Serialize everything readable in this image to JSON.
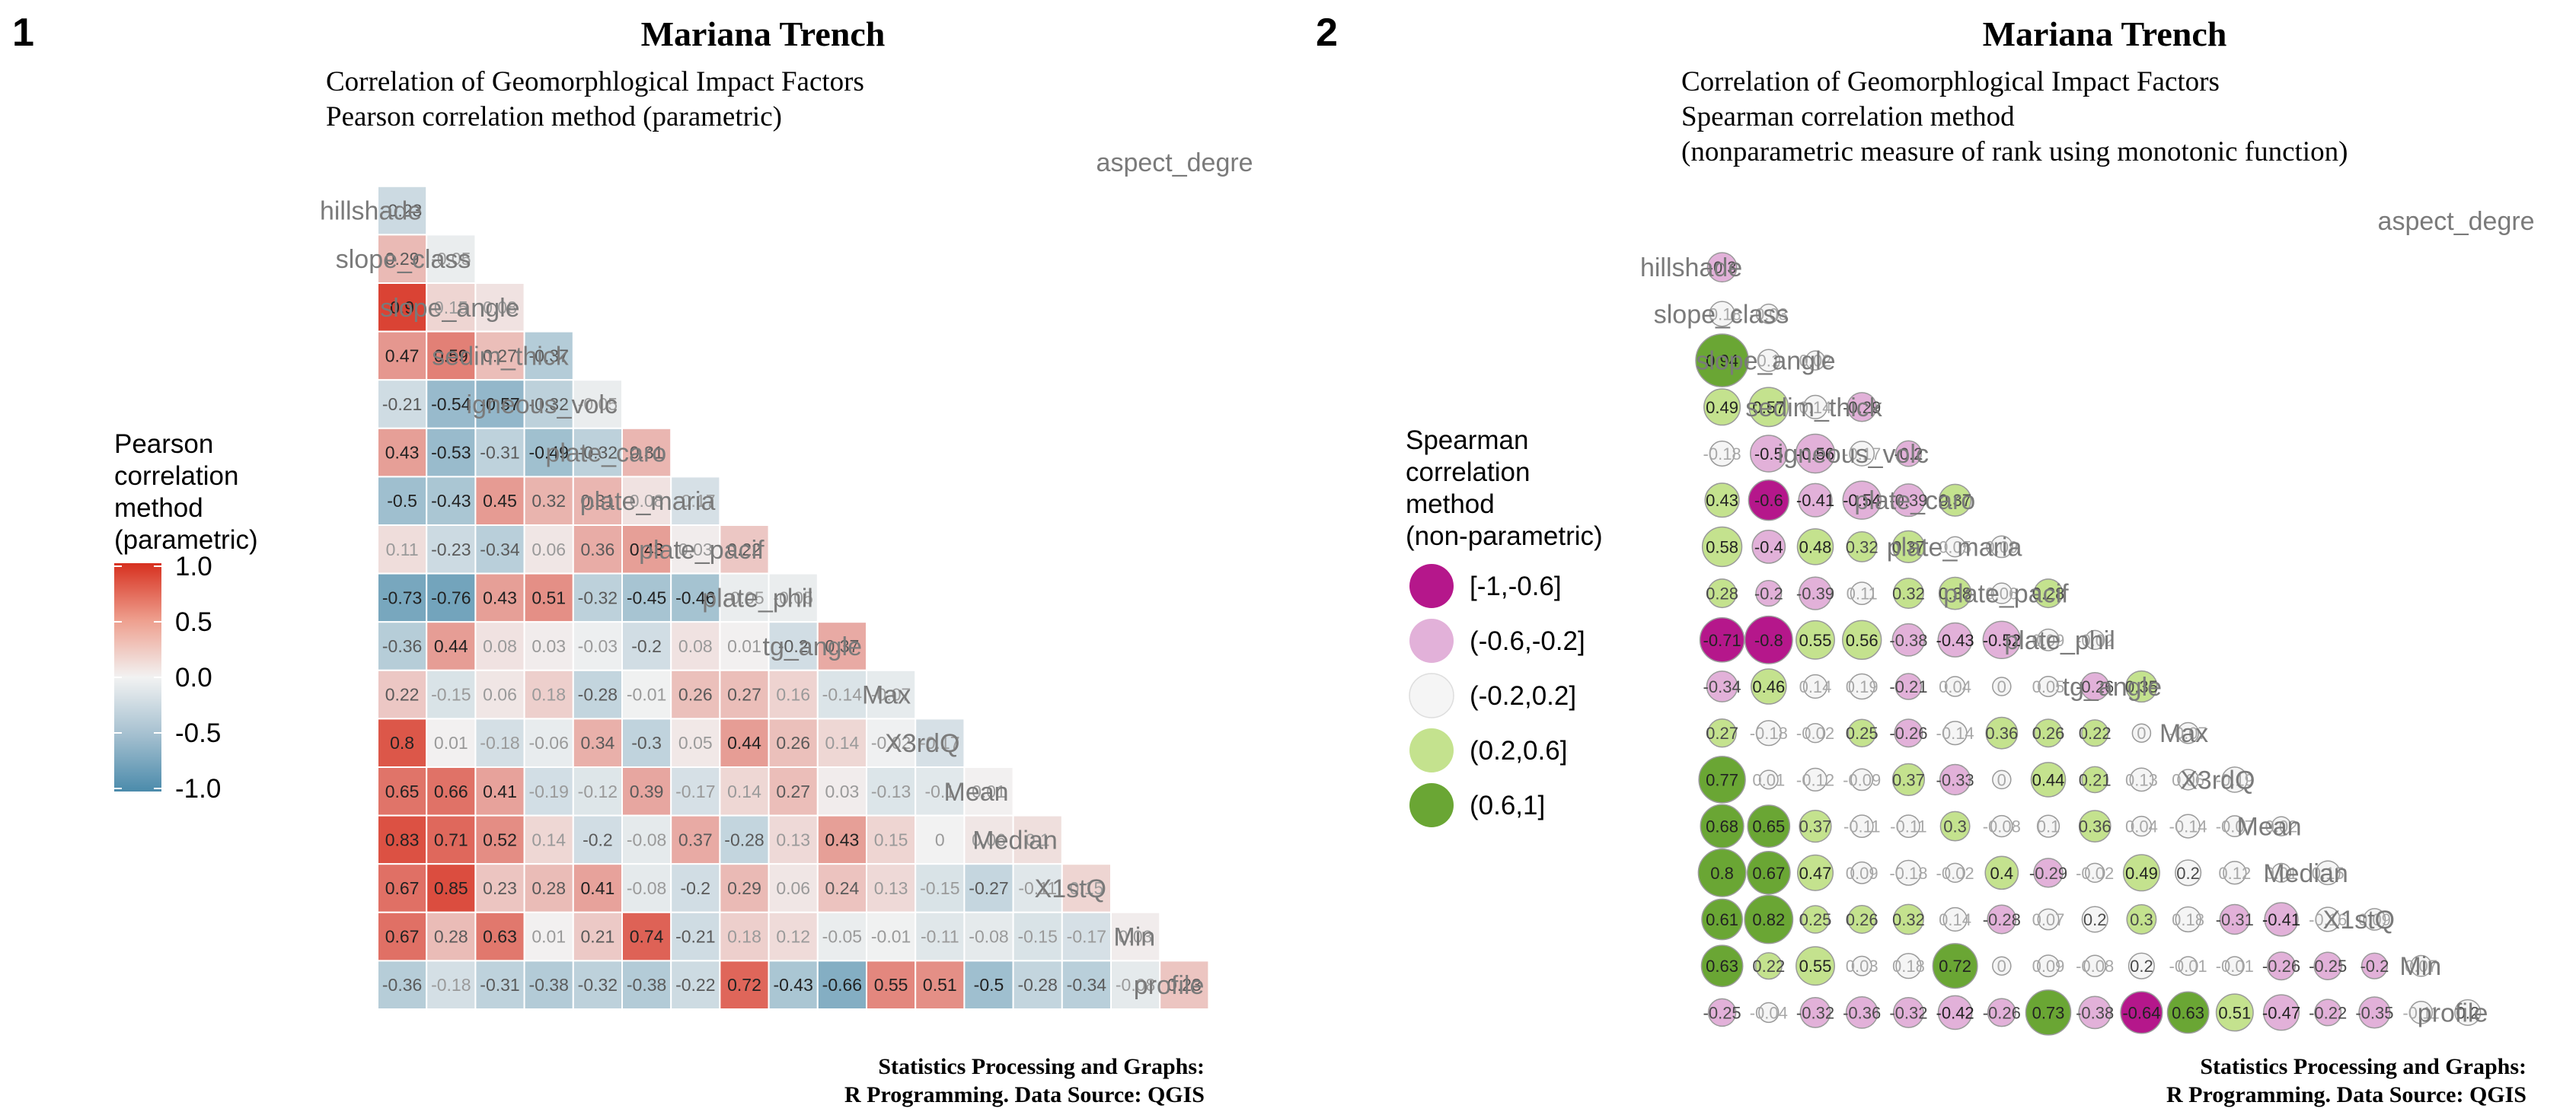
{
  "panels": [
    {
      "number": "1",
      "title": "Mariana Trench",
      "subtitle_lines": [
        "Correlation of Geomorphlogical Impact Factors",
        "Pearson correlation method (parametric)"
      ],
      "caption_lines": [
        "Statistics Processing and Graphs:",
        "R Programming. Data Source: QGIS"
      ],
      "legend": {
        "title_lines": [
          "Pearson",
          "correlation",
          "method",
          "(parametric)"
        ],
        "ticks": [
          "1.0",
          "0.5",
          "0.0",
          "-0.5",
          "-1.0"
        ],
        "colors": {
          "low": "#4b8bab",
          "mid": "#f2f2f2",
          "high": "#d7301f"
        }
      }
    },
    {
      "number": "2",
      "title": "Mariana Trench",
      "subtitle_lines": [
        "Correlation of Geomorphlogical Impact Factors",
        "Spearman correlation method",
        "(nonparametric measure of rank using monotonic function)"
      ],
      "caption_lines": [
        "Statistics Processing and Graphs:",
        "R Programming. Data Source: QGIS"
      ],
      "legend": {
        "title_lines": [
          "Spearman",
          "correlation",
          "method",
          "(non-parametric)"
        ],
        "items": [
          {
            "label": "[-1,-0.6]",
            "color": "#b5178b"
          },
          {
            "label": "(-0.6,-0.2]",
            "color": "#e2b1d9"
          },
          {
            "label": "(-0.2,0.2]",
            "color": "#f5f5f5"
          },
          {
            "label": "(0.2,0.6]",
            "color": "#c4e28e"
          },
          {
            "label": "(0.6,1]",
            "color": "#6aa634"
          }
        ]
      }
    }
  ],
  "chart_data": [
    {
      "type": "heatmap",
      "title": "Mariana Trench",
      "method": "Pearson correlation method (parametric)",
      "row_labels": [
        "aspect_degre",
        "hillshade",
        "slope_class",
        "slope_angle",
        "sedim_thick",
        "igneous_volc",
        "plate_caro",
        "plate_maria",
        "plate_pacif",
        "plate_phil",
        "tg_angle",
        "Max",
        "X3rdQ",
        "Mean",
        "Median",
        "X1stQ",
        "Min",
        "profile"
      ],
      "column_order": [
        "profile",
        "Min",
        "X1stQ",
        "Median",
        "Mean",
        "X3rdQ",
        "Max",
        "tg_angle",
        "plate_phil",
        "plate_pacif",
        "plate_maria",
        "plate_caro",
        "igneous_volc",
        "sedim_thick",
        "slope_angle",
        "slope_class",
        "hillshade"
      ],
      "values": [
        [],
        [
          -0.23
        ],
        [
          0.29,
          -0.05
        ],
        [
          0.9,
          0.15,
          0.08
        ],
        [
          0.47,
          0.59,
          0.27,
          -0.37
        ],
        [
          -0.21,
          -0.54,
          -0.57,
          -0.32,
          -0.05
        ],
        [
          0.43,
          -0.53,
          -0.31,
          -0.49,
          -0.32,
          0.31
        ],
        [
          -0.5,
          -0.43,
          0.45,
          0.32,
          0.31,
          0.08,
          -0.17
        ],
        [
          0.11,
          -0.23,
          -0.34,
          0.06,
          0.36,
          0.43,
          0.03,
          0.22
        ],
        [
          -0.73,
          -0.76,
          0.43,
          0.51,
          -0.32,
          -0.45,
          -0.46,
          -0.05,
          -0.05
        ],
        [
          -0.36,
          0.44,
          0.08,
          0.03,
          -0.03,
          -0.2,
          0.08,
          0.01,
          -0.2,
          0.37
        ],
        [
          0.22,
          -0.15,
          0.06,
          0.18,
          -0.28,
          -0.01,
          0.26,
          0.27,
          0.16,
          -0.14,
          -0.07
        ],
        [
          0.8,
          0.01,
          -0.18,
          -0.06,
          0.34,
          -0.3,
          0.05,
          0.44,
          0.26,
          0.14,
          -0.02,
          -0.17
        ],
        [
          0.65,
          0.66,
          0.41,
          -0.19,
          -0.12,
          0.39,
          -0.17,
          0.14,
          0.27,
          0.03,
          -0.13,
          -0.1,
          0.01
        ],
        [
          0.83,
          0.71,
          0.52,
          0.14,
          -0.2,
          -0.08,
          0.37,
          -0.28,
          0.13,
          0.43,
          0.15,
          0,
          0.06,
          0.1
        ],
        [
          0.67,
          0.85,
          0.23,
          0.28,
          0.41,
          -0.08,
          -0.2,
          0.29,
          0.06,
          0.24,
          0.13,
          -0.15,
          -0.27,
          -0.11,
          0.15
        ],
        [
          0.67,
          0.28,
          0.63,
          0.01,
          0.21,
          0.74,
          -0.21,
          0.18,
          0.12,
          -0.05,
          -0.01,
          -0.11,
          -0.08,
          -0.15,
          -0.17,
          0.03
        ],
        [
          -0.36,
          -0.18,
          -0.31,
          -0.38,
          -0.32,
          -0.38,
          -0.22,
          0.72,
          -0.43,
          -0.66,
          0.55,
          0.51,
          -0.5,
          -0.28,
          -0.34,
          -0.08,
          0.23
        ]
      ],
      "color_scale": {
        "low": "#4b8bab",
        "mid": "#f2f2f2",
        "high": "#d7301f",
        "limits": [
          -1,
          1
        ]
      }
    },
    {
      "type": "heatmap",
      "title": "Mariana Trench",
      "method": "Spearman correlation method",
      "row_labels": [
        "aspect_degre",
        "hillshade",
        "slope_class",
        "slope_angle",
        "sedim_thick",
        "igneous_volc",
        "plate_caro",
        "plate_maria",
        "plate_pacif",
        "plate_phil",
        "tg_angle",
        "Max",
        "X3rdQ",
        "Mean",
        "Median",
        "X1stQ",
        "Min",
        "profile"
      ],
      "column_order": [
        "profile",
        "Min",
        "X1stQ",
        "Median",
        "Mean",
        "X3rdQ",
        "Max",
        "tg_angle",
        "plate_phil",
        "plate_pacif",
        "plate_maria",
        "plate_caro",
        "igneous_volc",
        "sedim_thick",
        "slope_angle",
        "slope_class",
        "hillshade"
      ],
      "values": [
        [],
        [
          -0.3
        ],
        [
          -0.18,
          -0.03
        ],
        [
          0.94,
          0.1,
          0.02
        ],
        [
          0.49,
          0.57,
          0.14,
          -0.29
        ],
        [
          -0.18,
          -0.5,
          -0.56,
          -0.17,
          -0.2
        ],
        [
          0.43,
          -0.6,
          -0.41,
          -0.54,
          -0.39,
          0.37
        ],
        [
          0.58,
          -0.4,
          0.48,
          0.32,
          0.37,
          0.05,
          0.09
        ],
        [
          0.28,
          -0.2,
          -0.39,
          0.11,
          0.32,
          0.38,
          0.06,
          0.28
        ],
        [
          -0.71,
          -0.8,
          0.55,
          0.56,
          -0.38,
          -0.43,
          -0.52,
          0.09,
          -0.02
        ],
        [
          -0.34,
          0.46,
          0.14,
          0.19,
          -0.21,
          0.04,
          0,
          0.05,
          -0.26,
          0.35
        ],
        [
          0.27,
          -0.18,
          -0.02,
          0.25,
          -0.26,
          -0.14,
          0.36,
          0.26,
          0.22,
          0,
          -0.07
        ],
        [
          0.77,
          0.01,
          -0.12,
          -0.09,
          0.37,
          -0.33,
          0,
          0.44,
          0.21,
          0.13,
          0.06,
          -0.19
        ],
        [
          0.68,
          0.65,
          0.37,
          -0.11,
          -0.11,
          0.3,
          -0.08,
          0.1,
          0.36,
          0.04,
          -0.14,
          -0.07,
          0.02
        ],
        [
          0.8,
          0.67,
          0.47,
          0.09,
          -0.18,
          -0.02,
          0.4,
          -0.29,
          -0.02,
          0.49,
          0.2,
          0.12,
          0.01,
          0.15
        ],
        [
          0.61,
          0.82,
          0.25,
          0.26,
          0.32,
          0.14,
          -0.28,
          0.07,
          0.2,
          0.3,
          0.18,
          -0.31,
          -0.41,
          -0.16,
          0.09
        ],
        [
          0.63,
          0.22,
          0.55,
          0.03,
          0.18,
          0.72,
          0,
          0.09,
          -0.08,
          0.2,
          -0.01,
          -0.01,
          -0.26,
          -0.25,
          -0.2,
          0.07
        ],
        [
          -0.25,
          -0.04,
          -0.32,
          -0.36,
          -0.32,
          -0.42,
          -0.26,
          0.73,
          -0.38,
          -0.64,
          0.63,
          0.51,
          -0.47,
          -0.22,
          -0.35,
          -0.11,
          0.2
        ]
      ],
      "bins": [
        "[-1,-0.6]",
        "(-0.6,-0.2]",
        "(-0.2,0.2]",
        "(0.2,0.6]",
        "(0.6,1]"
      ],
      "bin_colors": [
        "#b5178b",
        "#e2b1d9",
        "#f5f5f5",
        "#c4e28e",
        "#6aa634"
      ]
    }
  ]
}
